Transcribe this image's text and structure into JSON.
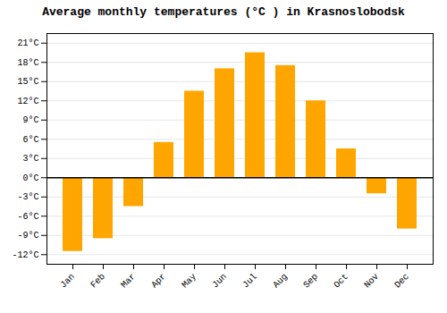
{
  "chart_data": {
    "type": "bar",
    "title": "Average monthly temperatures (°C ) in Krasnoslobodsk",
    "categories": [
      "Jan",
      "Feb",
      "Mar",
      "Apr",
      "May",
      "Jun",
      "Jul",
      "Aug",
      "Sep",
      "Oct",
      "Nov",
      "Dec"
    ],
    "values": [
      -11.5,
      -9.5,
      -4.5,
      5.5,
      13.5,
      17.0,
      19.5,
      17.5,
      12.0,
      4.5,
      -2.5,
      -8.0
    ],
    "color": "#FFA500",
    "ylim": [
      -13.5,
      22.5
    ],
    "yticks": [
      {
        "value": -12,
        "label": "-12°C"
      },
      {
        "value": -9,
        "label": "-9°C"
      },
      {
        "value": -6,
        "label": "-6°C"
      },
      {
        "value": -3,
        "label": "-3°C"
      },
      {
        "value": 0,
        "label": "0°C"
      },
      {
        "value": 3,
        "label": "3°C"
      },
      {
        "value": 6,
        "label": "6°C"
      },
      {
        "value": 9,
        "label": "9°C"
      },
      {
        "value": 12,
        "label": "12°C"
      },
      {
        "value": 15,
        "label": "15°C"
      },
      {
        "value": 18,
        "label": "18°C"
      },
      {
        "value": 21,
        "label": "21°C"
      }
    ],
    "grid": true
  }
}
